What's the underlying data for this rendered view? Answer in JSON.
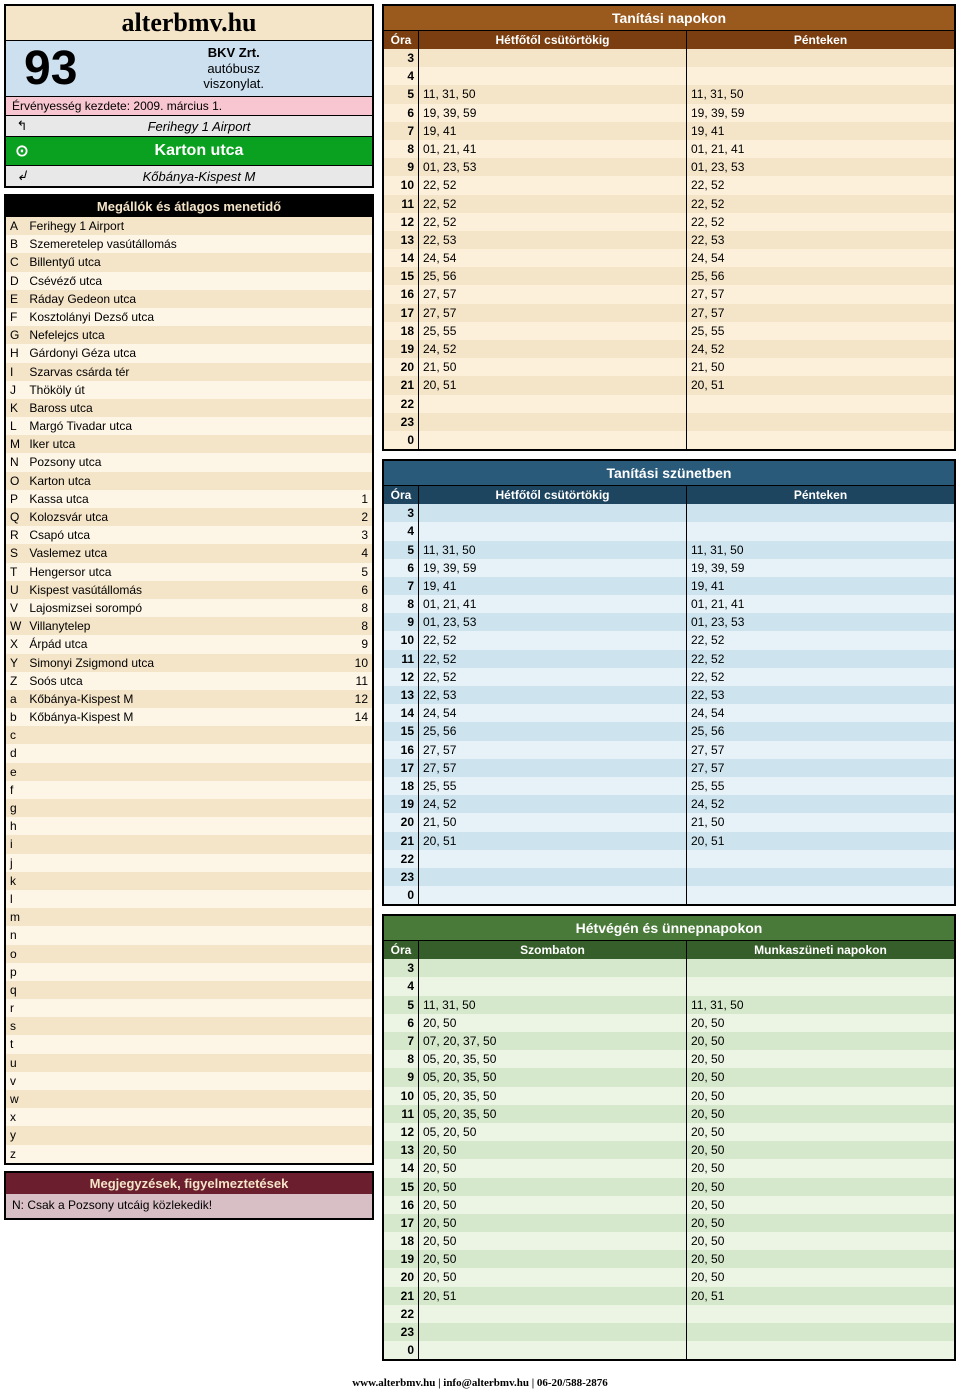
{
  "site_title": "alterbmv.hu",
  "route": {
    "number": "93",
    "company": "BKV Zrt.",
    "type1": "autóbusz",
    "type2": "viszonylat."
  },
  "validity": "Érvényesség kezdete:  2009. március 1.",
  "terminals": {
    "prev": {
      "symbol": "↰",
      "name": "Ferihegy 1 Airport"
    },
    "current": {
      "symbol": "⊙",
      "name": "Karton utca"
    },
    "next": {
      "symbol": "↲",
      "name": "Kőbánya-Kispest M"
    }
  },
  "stops_header": "Megállók és átlagos menetidő",
  "stops": [
    {
      "l": "A",
      "n": "Ferihegy 1 Airport",
      "m": ""
    },
    {
      "l": "B",
      "n": "Szemeretelep vasútállomás",
      "m": ""
    },
    {
      "l": "C",
      "n": "Billentyű utca",
      "m": ""
    },
    {
      "l": "D",
      "n": "Csévéző utca",
      "m": ""
    },
    {
      "l": "E",
      "n": "Ráday Gedeon utca",
      "m": ""
    },
    {
      "l": "F",
      "n": "Kosztolányi Dezső utca",
      "m": ""
    },
    {
      "l": "G",
      "n": "Nefelejcs utca",
      "m": ""
    },
    {
      "l": "H",
      "n": "Gárdonyi Géza utca",
      "m": ""
    },
    {
      "l": "I",
      "n": "Szarvas csárda tér",
      "m": ""
    },
    {
      "l": "J",
      "n": "Thököly út",
      "m": ""
    },
    {
      "l": "K",
      "n": "Baross utca",
      "m": ""
    },
    {
      "l": "L",
      "n": "Margó Tivadar utca",
      "m": ""
    },
    {
      "l": "M",
      "n": "Iker utca",
      "m": ""
    },
    {
      "l": "N",
      "n": "Pozsony utca",
      "m": ""
    },
    {
      "l": "O",
      "n": "Karton utca",
      "m": ""
    },
    {
      "l": "P",
      "n": "Kassa utca",
      "m": "1"
    },
    {
      "l": "Q",
      "n": "Kolozsvár utca",
      "m": "2"
    },
    {
      "l": "R",
      "n": "Csapó utca",
      "m": "3"
    },
    {
      "l": "S",
      "n": "Vaslemez utca",
      "m": "4"
    },
    {
      "l": "T",
      "n": "Hengersor utca",
      "m": "5"
    },
    {
      "l": "U",
      "n": "Kispest vasútállomás",
      "m": "6"
    },
    {
      "l": "V",
      "n": "Lajosmizsei sorompó",
      "m": "8"
    },
    {
      "l": "W",
      "n": "Villanytelep",
      "m": "8"
    },
    {
      "l": "X",
      "n": "Árpád utca",
      "m": "9"
    },
    {
      "l": "Y",
      "n": "Simonyi Zsigmond utca",
      "m": "10"
    },
    {
      "l": "Z",
      "n": "Soós utca",
      "m": "11"
    },
    {
      "l": "a",
      "n": "Kőbánya-Kispest M",
      "m": "12"
    },
    {
      "l": "b",
      "n": "Kőbánya-Kispest M",
      "m": "14"
    },
    {
      "l": "c",
      "n": "",
      "m": ""
    },
    {
      "l": "d",
      "n": "",
      "m": ""
    },
    {
      "l": "e",
      "n": "",
      "m": ""
    },
    {
      "l": "f",
      "n": "",
      "m": ""
    },
    {
      "l": "g",
      "n": "",
      "m": ""
    },
    {
      "l": "h",
      "n": "",
      "m": ""
    },
    {
      "l": "i",
      "n": "",
      "m": ""
    },
    {
      "l": "j",
      "n": "",
      "m": ""
    },
    {
      "l": "k",
      "n": "",
      "m": ""
    },
    {
      "l": "l",
      "n": "",
      "m": ""
    },
    {
      "l": "m",
      "n": "",
      "m": ""
    },
    {
      "l": "n",
      "n": "",
      "m": ""
    },
    {
      "l": "o",
      "n": "",
      "m": ""
    },
    {
      "l": "p",
      "n": "",
      "m": ""
    },
    {
      "l": "q",
      "n": "",
      "m": ""
    },
    {
      "l": "r",
      "n": "",
      "m": ""
    },
    {
      "l": "s",
      "n": "",
      "m": ""
    },
    {
      "l": "t",
      "n": "",
      "m": ""
    },
    {
      "l": "u",
      "n": "",
      "m": ""
    },
    {
      "l": "v",
      "n": "",
      "m": ""
    },
    {
      "l": "w",
      "n": "",
      "m": ""
    },
    {
      "l": "x",
      "n": "",
      "m": ""
    },
    {
      "l": "y",
      "n": "",
      "m": ""
    },
    {
      "l": "z",
      "n": "",
      "m": ""
    }
  ],
  "notes_header": "Megjegyzések, figyelmeztetések",
  "notes_body": "N: Csak a Pozsony utcáig közlekedik!",
  "schedules": [
    {
      "cls": "sched-brown",
      "title": "Tanítási napokon",
      "heads": [
        "Óra",
        "Hétfőtől csütörtökig",
        "Pénteken"
      ],
      "rows": [
        {
          "h": "3",
          "c": [
            "",
            ""
          ]
        },
        {
          "h": "4",
          "c": [
            "",
            ""
          ]
        },
        {
          "h": "5",
          "c": [
            "11, 31, 50",
            "11, 31, 50"
          ]
        },
        {
          "h": "6",
          "c": [
            "19, 39, 59",
            "19, 39, 59"
          ]
        },
        {
          "h": "7",
          "c": [
            "19, 41",
            "19, 41"
          ]
        },
        {
          "h": "8",
          "c": [
            "01, 21, 41",
            "01, 21, 41"
          ]
        },
        {
          "h": "9",
          "c": [
            "01, 23, 53",
            "01, 23, 53"
          ]
        },
        {
          "h": "10",
          "c": [
            "22, 52",
            "22, 52"
          ]
        },
        {
          "h": "11",
          "c": [
            "22, 52",
            "22, 52"
          ]
        },
        {
          "h": "12",
          "c": [
            "22, 52",
            "22, 52"
          ]
        },
        {
          "h": "13",
          "c": [
            "22, 53",
            "22, 53"
          ]
        },
        {
          "h": "14",
          "c": [
            "24, 54",
            "24, 54"
          ]
        },
        {
          "h": "15",
          "c": [
            "25, 56",
            "25, 56"
          ]
        },
        {
          "h": "16",
          "c": [
            "27, 57",
            "27, 57"
          ]
        },
        {
          "h": "17",
          "c": [
            "27, 57",
            "27, 57"
          ]
        },
        {
          "h": "18",
          "c": [
            "25, 55",
            "25, 55"
          ]
        },
        {
          "h": "19",
          "c": [
            "24, 52",
            "24, 52"
          ]
        },
        {
          "h": "20",
          "c": [
            "21, 50",
            "21, 50"
          ]
        },
        {
          "h": "21",
          "c": [
            "20, 51",
            "20, 51"
          ]
        },
        {
          "h": "22",
          "c": [
            "",
            ""
          ]
        },
        {
          "h": "23",
          "c": [
            "",
            ""
          ]
        },
        {
          "h": "0",
          "c": [
            "",
            ""
          ]
        }
      ]
    },
    {
      "cls": "sched-blue",
      "title": "Tanítási szünetben",
      "heads": [
        "Óra",
        "Hétfőtől csütörtökig",
        "Pénteken"
      ],
      "rows": [
        {
          "h": "3",
          "c": [
            "",
            ""
          ]
        },
        {
          "h": "4",
          "c": [
            "",
            ""
          ]
        },
        {
          "h": "5",
          "c": [
            "11, 31, 50",
            "11, 31, 50"
          ]
        },
        {
          "h": "6",
          "c": [
            "19, 39, 59",
            "19, 39, 59"
          ]
        },
        {
          "h": "7",
          "c": [
            "19, 41",
            "19, 41"
          ]
        },
        {
          "h": "8",
          "c": [
            "01, 21, 41",
            "01, 21, 41"
          ]
        },
        {
          "h": "9",
          "c": [
            "01, 23, 53",
            "01, 23, 53"
          ]
        },
        {
          "h": "10",
          "c": [
            "22, 52",
            "22, 52"
          ]
        },
        {
          "h": "11",
          "c": [
            "22, 52",
            "22, 52"
          ]
        },
        {
          "h": "12",
          "c": [
            "22, 52",
            "22, 52"
          ]
        },
        {
          "h": "13",
          "c": [
            "22, 53",
            "22, 53"
          ]
        },
        {
          "h": "14",
          "c": [
            "24, 54",
            "24, 54"
          ]
        },
        {
          "h": "15",
          "c": [
            "25, 56",
            "25, 56"
          ]
        },
        {
          "h": "16",
          "c": [
            "27, 57",
            "27, 57"
          ]
        },
        {
          "h": "17",
          "c": [
            "27, 57",
            "27, 57"
          ]
        },
        {
          "h": "18",
          "c": [
            "25, 55",
            "25, 55"
          ]
        },
        {
          "h": "19",
          "c": [
            "24, 52",
            "24, 52"
          ]
        },
        {
          "h": "20",
          "c": [
            "21, 50",
            "21, 50"
          ]
        },
        {
          "h": "21",
          "c": [
            "20, 51",
            "20, 51"
          ]
        },
        {
          "h": "22",
          "c": [
            "",
            ""
          ]
        },
        {
          "h": "23",
          "c": [
            "",
            ""
          ]
        },
        {
          "h": "0",
          "c": [
            "",
            ""
          ]
        }
      ]
    },
    {
      "cls": "sched-green",
      "title": "Hétvégén és ünnepnapokon",
      "heads": [
        "Óra",
        "Szombaton",
        "Munkaszüneti napokon"
      ],
      "rows": [
        {
          "h": "3",
          "c": [
            "",
            ""
          ]
        },
        {
          "h": "4",
          "c": [
            "",
            ""
          ]
        },
        {
          "h": "5",
          "c": [
            "11, 31, 50",
            "11, 31, 50"
          ]
        },
        {
          "h": "6",
          "c": [
            "20, 50",
            "20, 50"
          ]
        },
        {
          "h": "7",
          "c": [
            "07, 20, 37, 50",
            "20, 50"
          ]
        },
        {
          "h": "8",
          "c": [
            "05, 20, 35, 50",
            "20, 50"
          ]
        },
        {
          "h": "9",
          "c": [
            "05, 20, 35, 50",
            "20, 50"
          ]
        },
        {
          "h": "10",
          "c": [
            "05, 20, 35, 50",
            "20, 50"
          ]
        },
        {
          "h": "11",
          "c": [
            "05, 20, 35, 50",
            "20, 50"
          ]
        },
        {
          "h": "12",
          "c": [
            "05, 20, 50",
            "20, 50"
          ]
        },
        {
          "h": "13",
          "c": [
            "20, 50",
            "20, 50"
          ]
        },
        {
          "h": "14",
          "c": [
            "20, 50",
            "20, 50"
          ]
        },
        {
          "h": "15",
          "c": [
            "20, 50",
            "20, 50"
          ]
        },
        {
          "h": "16",
          "c": [
            "20, 50",
            "20, 50"
          ]
        },
        {
          "h": "17",
          "c": [
            "20, 50",
            "20, 50"
          ]
        },
        {
          "h": "18",
          "c": [
            "20, 50",
            "20, 50"
          ]
        },
        {
          "h": "19",
          "c": [
            "20, 50",
            "20, 50"
          ]
        },
        {
          "h": "20",
          "c": [
            "20, 50",
            "20, 50"
          ]
        },
        {
          "h": "21",
          "c": [
            "20, 51",
            "20, 51"
          ]
        },
        {
          "h": "22",
          "c": [
            "",
            ""
          ]
        },
        {
          "h": "23",
          "c": [
            "",
            ""
          ]
        },
        {
          "h": "0",
          "c": [
            "",
            ""
          ]
        }
      ]
    }
  ],
  "footer": "www.alterbmv.hu   |   info@alterbmv.hu   |   06-20/588-2876"
}
